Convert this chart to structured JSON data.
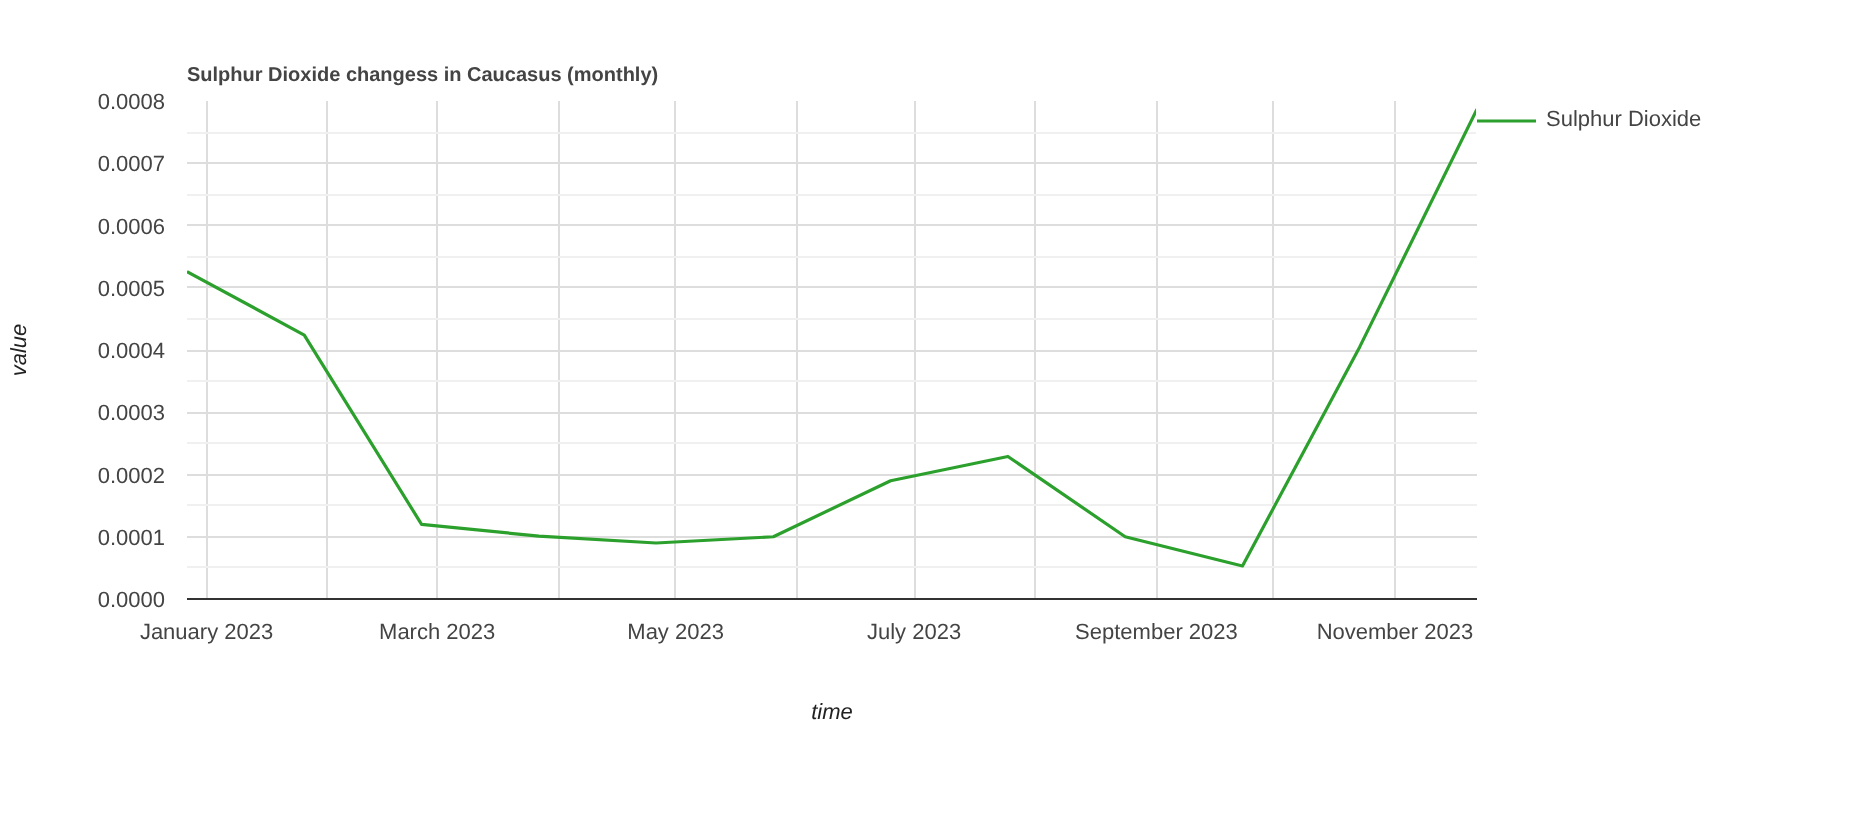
{
  "chart_data": {
    "type": "line",
    "title": "Sulphur Dioxide changess in Caucasus (monthly)",
    "xlabel": "time",
    "ylabel": "value",
    "x": [
      "2022-12-27",
      "2023-01-26",
      "2023-02-25",
      "2023-03-27",
      "2023-04-26",
      "2023-05-26",
      "2023-06-25",
      "2023-07-25",
      "2023-08-24",
      "2023-09-23",
      "2023-10-23",
      "2023-11-22"
    ],
    "series": [
      {
        "name": "Sulphur Dioxide",
        "color": "#2ca02c",
        "values": [
          0.000526,
          0.000424,
          0.00012,
          0.000101,
          9e-05,
          0.0001,
          0.00019,
          0.000229,
          0.0001,
          5.3e-05,
          0.000405,
          0.000787
        ]
      }
    ],
    "xlim": [
      "2022-12-27",
      "2023-11-22"
    ],
    "xticks": [
      {
        "value": "2023-01-01",
        "label": "January 2023"
      },
      {
        "value": "2023-02-01",
        "label": null
      },
      {
        "value": "2023-03-01",
        "label": "March 2023"
      },
      {
        "value": "2023-04-01",
        "label": null
      },
      {
        "value": "2023-05-01",
        "label": "May 2023"
      },
      {
        "value": "2023-06-01",
        "label": null
      },
      {
        "value": "2023-07-01",
        "label": "July 2023"
      },
      {
        "value": "2023-08-01",
        "label": null
      },
      {
        "value": "2023-09-01",
        "label": "September 2023"
      },
      {
        "value": "2023-10-01",
        "label": null
      },
      {
        "value": "2023-11-01",
        "label": "November 2023"
      }
    ],
    "ylim": [
      0,
      0.0008
    ],
    "yticks": [
      {
        "value": 0,
        "label": "0.0000"
      },
      {
        "value": 0.0001,
        "label": "0.0001"
      },
      {
        "value": 0.0002,
        "label": "0.0002"
      },
      {
        "value": 0.0003,
        "label": "0.0003"
      },
      {
        "value": 0.0004,
        "label": "0.0004"
      },
      {
        "value": 0.0005,
        "label": "0.0005"
      },
      {
        "value": 0.0006,
        "label": "0.0006"
      },
      {
        "value": 0.0007,
        "label": "0.0007"
      },
      {
        "value": 0.0008,
        "label": "0.0008"
      }
    ],
    "grid": true,
    "legend": "right",
    "marker": "none",
    "line_style": "solid"
  }
}
